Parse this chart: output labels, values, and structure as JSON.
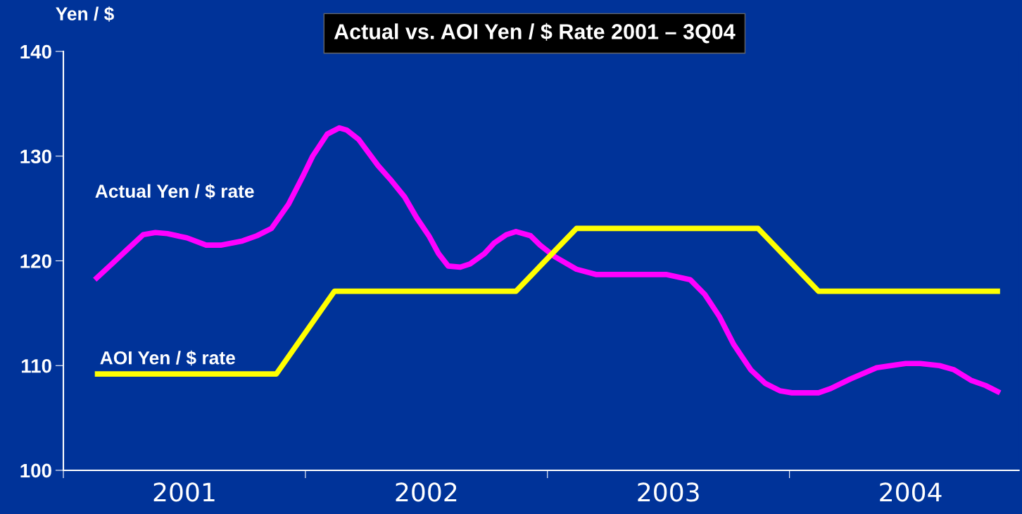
{
  "chart_data": {
    "type": "line",
    "title": "Actual vs. AOI Yen / $ Rate 2001 – 3Q04",
    "ylabel": "Yen / $",
    "xlim": [
      2001,
      2004.948
    ],
    "xticks": [
      {
        "value": 2001,
        "label": null
      },
      {
        "value": 2001.5,
        "label": "2001"
      },
      {
        "value": 2002,
        "label": null
      },
      {
        "value": 2002.5,
        "label": "2002"
      },
      {
        "value": 2003,
        "label": null
      },
      {
        "value": 2003.5,
        "label": "2003"
      },
      {
        "value": 2004,
        "label": null
      },
      {
        "value": 2004.5,
        "label": "2004"
      }
    ],
    "ylim": [
      100,
      140
    ],
    "yticks": [
      100,
      110,
      120,
      130,
      140
    ],
    "grid": false,
    "legend": false,
    "marker": "none",
    "line_style": "solid",
    "series": [
      {
        "name": "Actual Yen / $ rate",
        "color": "#ff00ff",
        "x": [
          2001.13,
          2001.2,
          2001.26,
          2001.33,
          2001.38,
          2001.43,
          2001.51,
          2001.59,
          2001.65,
          2001.74,
          2001.8,
          2001.86,
          2001.93,
          2001.99,
          2002.03,
          2002.09,
          2002.14,
          2002.17,
          2002.22,
          2002.3,
          2002.35,
          2002.41,
          2002.46,
          2002.51,
          2002.55,
          2002.59,
          2002.64,
          2002.68,
          2002.74,
          2002.78,
          2002.83,
          2002.87,
          2002.93,
          2002.97,
          2003.03,
          2003.12,
          2003.2,
          2003.35,
          2003.49,
          2003.59,
          2003.65,
          2003.71,
          2003.77,
          2003.84,
          2003.9,
          2003.96,
          2004.01,
          2004.12,
          2004.17,
          2004.25,
          2004.36,
          2004.48,
          2004.54,
          2004.62,
          2004.68,
          2004.75,
          2004.81,
          2004.87
        ],
        "values": [
          118.2,
          119.7,
          121.0,
          122.5,
          122.7,
          122.6,
          122.2,
          121.5,
          121.5,
          121.9,
          122.4,
          123.1,
          125.4,
          128.1,
          130.0,
          132.1,
          132.7,
          132.5,
          131.6,
          129.1,
          127.8,
          126.1,
          124.1,
          122.4,
          120.7,
          119.5,
          119.4,
          119.7,
          120.7,
          121.7,
          122.5,
          122.8,
          122.4,
          121.5,
          120.4,
          119.2,
          118.7,
          118.7,
          118.7,
          118.2,
          116.8,
          114.7,
          112.0,
          109.6,
          108.3,
          107.6,
          107.4,
          107.4,
          107.8,
          108.7,
          109.8,
          110.2,
          110.2,
          110.0,
          109.6,
          108.6,
          108.1,
          107.4
        ]
      },
      {
        "name": "AOI Yen / $ rate",
        "color": "#ffff00",
        "x": [
          2001.13,
          2001.88,
          2002.12,
          2002.87,
          2003.12,
          2003.87,
          2004.12,
          2004.87
        ],
        "values": [
          109.2,
          109.2,
          117.1,
          117.1,
          123.1,
          123.1,
          117.1,
          117.1
        ]
      }
    ]
  }
}
